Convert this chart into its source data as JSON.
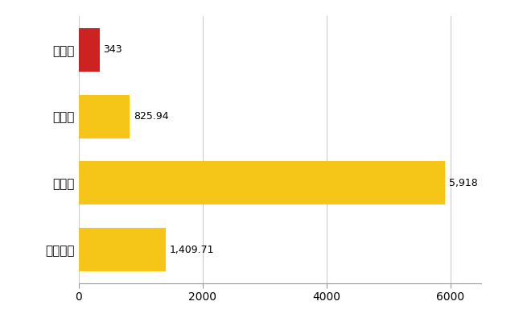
{
  "categories": [
    "岩手町",
    "県平均",
    "県最大",
    "全国平均"
  ],
  "values": [
    343,
    825.94,
    5918,
    1409.71
  ],
  "bar_colors": [
    "#cc2222",
    "#f5c518",
    "#f5c518",
    "#f5c518"
  ],
  "labels": [
    "343",
    "825.94",
    "5,918",
    "1,409.71"
  ],
  "xlim": [
    0,
    6500
  ],
  "xticks": [
    0,
    2000,
    4000,
    6000
  ],
  "xtick_labels": [
    "0",
    "2000",
    "4000",
    "6000"
  ],
  "background_color": "#ffffff",
  "grid_color": "#cccccc",
  "bar_height": 0.65
}
